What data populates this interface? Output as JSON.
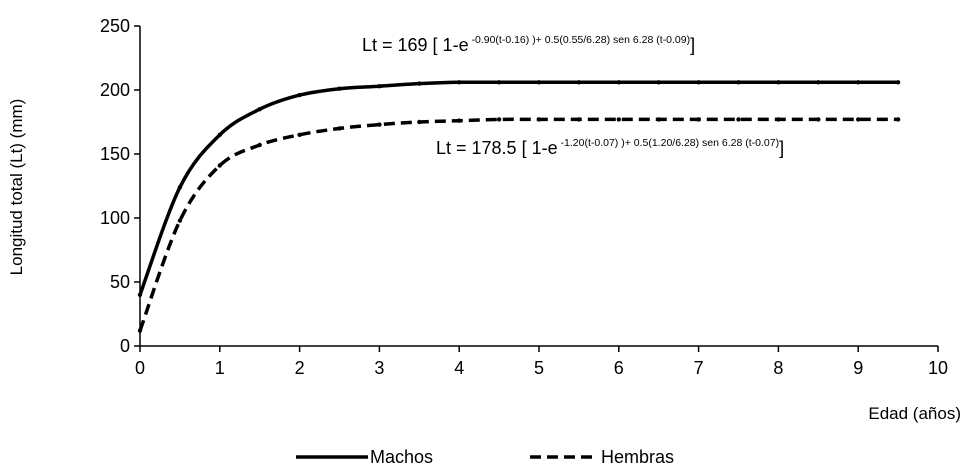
{
  "chart_data": {
    "type": "line",
    "title": "",
    "xlabel": "Edad (años)",
    "ylabel": "Longitud total (Lt) (mm)",
    "xlim": [
      0,
      10
    ],
    "ylim": [
      0,
      250
    ],
    "xticks": [
      0,
      1,
      2,
      3,
      4,
      5,
      6,
      7,
      8,
      9,
      10
    ],
    "yticks": [
      0,
      50,
      100,
      150,
      200,
      250
    ],
    "grid": false,
    "legend_position": "bottom",
    "series": [
      {
        "name": "Machos",
        "style": "solid",
        "color": "#000000",
        "x": [
          0,
          0.5,
          1,
          1.5,
          2,
          2.5,
          3,
          3.5,
          4,
          4.5,
          5,
          5.5,
          6,
          6.5,
          7,
          7.5,
          8,
          8.5,
          9,
          9.5
        ],
        "y": [
          40,
          124,
          165,
          185,
          196,
          201,
          203,
          205,
          206,
          206,
          206,
          206,
          206,
          206,
          206,
          206,
          206,
          206,
          206,
          206
        ]
      },
      {
        "name": "Hembras",
        "style": "dashed",
        "color": "#000000",
        "x": [
          0,
          0.5,
          1,
          1.5,
          2,
          2.5,
          3,
          3.5,
          4,
          4.5,
          5,
          5.5,
          6,
          6.5,
          7,
          7.5,
          8,
          8.5,
          9,
          9.5
        ],
        "y": [
          12,
          98,
          141,
          157,
          165,
          170,
          173,
          175,
          176,
          177,
          177,
          177,
          177,
          177,
          177,
          177,
          177,
          177,
          177,
          177
        ]
      }
    ],
    "annotations": [
      {
        "id": "machos-eq",
        "main": "Lt = 169 [ 1-e",
        "superscript": " -0.90(t-0.16) )+ 0.5(0.55/6.28) sen 6.28 (t-0.09)",
        "close": "]"
      },
      {
        "id": "hembras-eq",
        "main": "Lt = 178.5 [ 1-e",
        "superscript": " -1.20(t-0.07) )+ 0.5(1.20/6.28) sen 6.28 (t-0.07)",
        "close": "]"
      }
    ]
  }
}
